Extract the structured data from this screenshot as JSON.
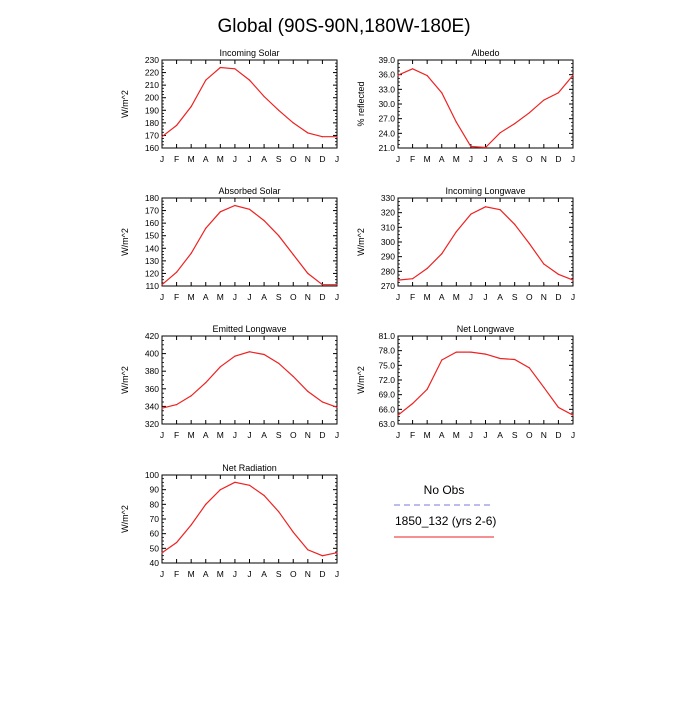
{
  "title": "Global (90S-90N,180W-180E)",
  "legend": {
    "obs_label": "No Obs",
    "obs_color": "#7777dd",
    "model_label": "1850_132 (yrs 2-6)",
    "model_color": "#ee2222"
  },
  "chart_data": [
    {
      "type": "line",
      "title": "Incoming Solar",
      "ylabel": "W/m^2",
      "categories": [
        "J",
        "F",
        "M",
        "A",
        "M",
        "J",
        "J",
        "A",
        "S",
        "O",
        "N",
        "D",
        "J"
      ],
      "ylim": [
        160,
        230
      ],
      "yticks": [
        "160",
        "170",
        "180",
        "190",
        "200",
        "210",
        "220",
        "230"
      ],
      "series": [
        {
          "name": "1850_132 (yrs 2-6)",
          "values": [
            169,
            178,
            193,
            214,
            224,
            223,
            214,
            201,
            190,
            180,
            172,
            169,
            169
          ]
        }
      ]
    },
    {
      "type": "line",
      "title": "Albedo",
      "ylabel": "% reflected",
      "categories": [
        "J",
        "F",
        "M",
        "A",
        "M",
        "J",
        "J",
        "A",
        "S",
        "O",
        "N",
        "D",
        "J"
      ],
      "ylim": [
        21.0,
        39.0
      ],
      "yticks": [
        "21.0",
        "24.0",
        "27.0",
        "30.0",
        "33.0",
        "36.0",
        "39.0"
      ],
      "series": [
        {
          "name": "1850_132 (yrs 2-6)",
          "values": [
            35.9,
            37.2,
            35.8,
            32.3,
            26.3,
            21.3,
            21.1,
            24.1,
            26.0,
            28.2,
            30.8,
            32.3,
            35.9
          ]
        }
      ]
    },
    {
      "type": "line",
      "title": "Absorbed Solar",
      "ylabel": "W/m^2",
      "categories": [
        "J",
        "F",
        "M",
        "A",
        "M",
        "J",
        "J",
        "A",
        "S",
        "O",
        "N",
        "D",
        "J"
      ],
      "ylim": [
        110,
        180
      ],
      "yticks": [
        "110",
        "120",
        "130",
        "140",
        "150",
        "160",
        "170",
        "180"
      ],
      "series": [
        {
          "name": "1850_132 (yrs 2-6)",
          "values": [
            111,
            121,
            136,
            156,
            169,
            174,
            171,
            162,
            150,
            135,
            120,
            111,
            111
          ]
        }
      ]
    },
    {
      "type": "line",
      "title": "Incoming Longwave",
      "ylabel": "W/m^2",
      "categories": [
        "J",
        "F",
        "M",
        "A",
        "M",
        "J",
        "J",
        "A",
        "S",
        "O",
        "N",
        "D",
        "J"
      ],
      "ylim": [
        270,
        330
      ],
      "yticks": [
        "270",
        "280",
        "290",
        "300",
        "310",
        "320",
        "330"
      ],
      "series": [
        {
          "name": "1850_132 (yrs 2-6)",
          "values": [
            274,
            275,
            282,
            292,
            307,
            319,
            324,
            322,
            312,
            299,
            285,
            278,
            274
          ]
        }
      ]
    },
    {
      "type": "line",
      "title": "Emitted Longwave",
      "ylabel": "W/m^2",
      "categories": [
        "J",
        "F",
        "M",
        "A",
        "M",
        "J",
        "J",
        "A",
        "S",
        "O",
        "N",
        "D",
        "J"
      ],
      "ylim": [
        320,
        420
      ],
      "yticks": [
        "320",
        "340",
        "360",
        "380",
        "400",
        "420"
      ],
      "series": [
        {
          "name": "1850_132 (yrs 2-6)",
          "values": [
            338,
            342,
            352,
            367,
            385,
            397,
            402,
            399,
            389,
            374,
            357,
            345,
            339
          ]
        }
      ]
    },
    {
      "type": "line",
      "title": "Net Longwave",
      "ylabel": "W/m^2",
      "categories": [
        "J",
        "F",
        "M",
        "A",
        "M",
        "J",
        "J",
        "A",
        "S",
        "O",
        "N",
        "D",
        "J"
      ],
      "ylim": [
        63.0,
        81.0
      ],
      "yticks": [
        "63.0",
        "66.0",
        "69.0",
        "72.0",
        "75.0",
        "78.0",
        "81.0"
      ],
      "series": [
        {
          "name": "1850_132 (yrs 2-6)",
          "values": [
            64.8,
            67.2,
            70.1,
            76.1,
            77.7,
            77.7,
            77.3,
            76.4,
            76.2,
            74.5,
            70.5,
            66.4,
            64.8
          ]
        }
      ]
    },
    {
      "type": "line",
      "title": "Net Radiation",
      "ylabel": "W/m^2",
      "categories": [
        "J",
        "F",
        "M",
        "A",
        "M",
        "J",
        "J",
        "A",
        "S",
        "O",
        "N",
        "D",
        "J"
      ],
      "ylim": [
        40,
        100
      ],
      "yticks": [
        "40",
        "50",
        "60",
        "70",
        "80",
        "90",
        "100"
      ],
      "series": [
        {
          "name": "1850_132 (yrs 2-6)",
          "values": [
            47,
            54,
            66,
            80,
            90,
            95,
            93,
            86,
            75,
            61,
            49,
            45,
            47
          ]
        }
      ]
    }
  ]
}
